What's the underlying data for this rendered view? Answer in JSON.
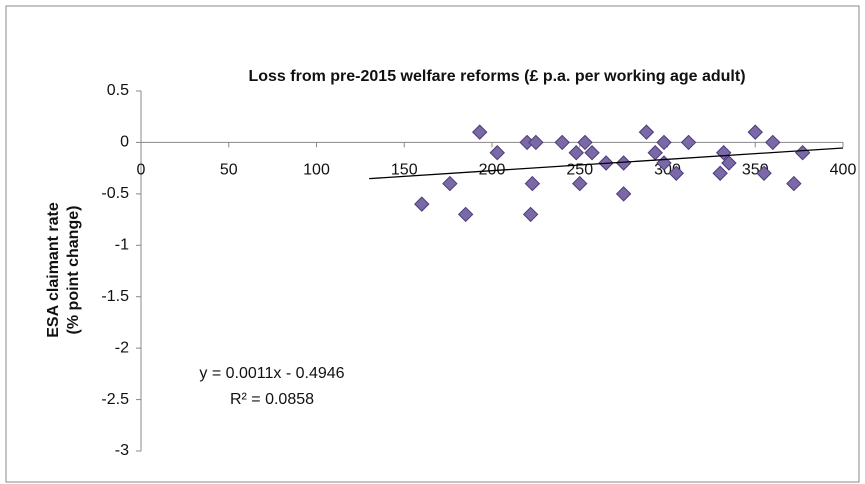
{
  "chart_data": {
    "type": "scatter",
    "title": "Loss from pre-2015 welfare reforms (£ p.a. per working age adult)",
    "y_label": [
      "ESA claimant rate",
      "(% point change)"
    ],
    "annotations": [
      "y = 0.0011x - 0.4946",
      "R² = 0.0858"
    ],
    "xlim": [
      0,
      400
    ],
    "xticks": [
      0,
      50,
      100,
      150,
      200,
      250,
      300,
      350,
      400
    ],
    "ylim": [
      -3,
      0.5
    ],
    "yticks": [
      0.5,
      0,
      -0.5,
      -1,
      -1.5,
      -2,
      -2.5,
      -3
    ],
    "grid": false,
    "series": [
      {
        "color": "#7b68a6",
        "x": [
          160,
          176,
          185,
          193,
          203,
          220,
          222,
          223,
          225,
          240,
          248,
          250,
          253,
          257,
          265,
          275,
          275,
          288,
          293,
          298,
          298,
          305,
          312,
          330,
          332,
          335,
          350,
          355,
          360,
          372,
          377
        ],
        "values": [
          -0.6,
          -0.4,
          -0.7,
          0.1,
          -0.1,
          0,
          -0.7,
          -0.4,
          0,
          0,
          -0.1,
          -0.4,
          0,
          -0.1,
          -0.2,
          -0.2,
          -0.5,
          0.1,
          -0.1,
          0,
          -0.2,
          -0.3,
          0,
          -0.3,
          -0.1,
          -0.2,
          0.1,
          -0.3,
          0,
          -0.4,
          -0.1
        ]
      }
    ],
    "trendline": {
      "color": "#000000",
      "x": [
        130,
        400
      ],
      "values": [
        -0.352,
        -0.054
      ]
    }
  }
}
